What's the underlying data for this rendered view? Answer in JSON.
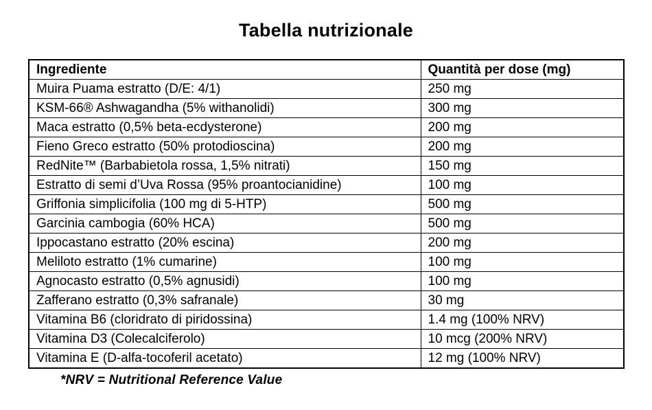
{
  "title": "Tabella nutrizionale",
  "table": {
    "headers": [
      "Ingrediente",
      "Quantità per dose (mg)"
    ],
    "rows": [
      {
        "ingredient": "Muira Puama estratto (D/E: 4/1)",
        "quantity": "250 mg"
      },
      {
        "ingredient": "KSM-66® Ashwagandha (5% withanolidi)",
        "quantity": "300 mg"
      },
      {
        "ingredient": "Maca estratto (0,5% beta-ecdysterone)",
        "quantity": "200 mg"
      },
      {
        "ingredient": "Fieno Greco estratto (50% protodioscina)",
        "quantity": "200 mg"
      },
      {
        "ingredient": "RedNite™ (Barbabietola rossa, 1,5% nitrati)",
        "quantity": "150 mg"
      },
      {
        "ingredient": "Estratto di semi d’Uva Rossa (95% proantocianidine)",
        "quantity": "100 mg"
      },
      {
        "ingredient": "Griffonia simplicifolia (100 mg di 5-HTP)",
        "quantity": "500 mg"
      },
      {
        "ingredient": "Garcinia cambogia (60% HCA)",
        "quantity": "500 mg"
      },
      {
        "ingredient": "Ippocastano estratto (20% escina)",
        "quantity": "200 mg"
      },
      {
        "ingredient": "Meliloto estratto (1% cumarine)",
        "quantity": "100 mg"
      },
      {
        "ingredient": "Agnocasto estratto (0,5% agnusidi)",
        "quantity": "100 mg"
      },
      {
        "ingredient": "Zafferano estratto (0,3% safranale)",
        "quantity": "30 mg"
      },
      {
        "ingredient": "Vitamina B6 (cloridrato di piridossina)",
        "quantity": "1.4 mg (100% NRV)"
      },
      {
        "ingredient": "Vitamina D3 (Colecalciferolo)",
        "quantity": "10 mcg (200% NRV)"
      },
      {
        "ingredient": "Vitamina E (D-alfa-tocoferil acetato)",
        "quantity": "12 mg (100% NRV)"
      }
    ]
  },
  "footnote": "*NRV = Nutritional Reference Value",
  "colors": {
    "background": "#ffffff",
    "text": "#000000",
    "border": "#000000"
  }
}
